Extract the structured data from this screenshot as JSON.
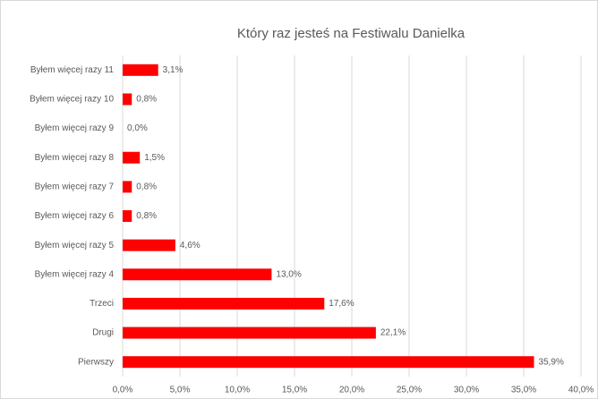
{
  "chart_data": {
    "type": "bar",
    "orientation": "horizontal",
    "title": "Który raz jesteś na Festiwalu Danielka",
    "categories": [
      "Pierwszy",
      "Drugi",
      "Trzeci",
      "Byłem więcej razy 4",
      "Byłem więcej razy 5",
      "Byłem więcej razy 6",
      "Byłem więcej razy 7",
      "Byłem więcej razy 8",
      "Byłem więcej razy 9",
      "Byłem więcej razy 10",
      "Byłem więcej razy 11"
    ],
    "values": [
      35.9,
      22.1,
      17.6,
      13.0,
      4.6,
      0.8,
      0.8,
      1.5,
      0.0,
      0.8,
      3.1
    ],
    "value_labels": [
      "35,9%",
      "22,1%",
      "17,6%",
      "13,0%",
      "4,6%",
      "0,8%",
      "0,8%",
      "1,5%",
      "0,0%",
      "0,8%",
      "3,1%"
    ],
    "color": "#ff0000",
    "xlim": [
      0,
      40
    ],
    "xticks": [
      {
        "value": 0,
        "label": "0,0%"
      },
      {
        "value": 5,
        "label": "5,0%"
      },
      {
        "value": 10,
        "label": "10,0%"
      },
      {
        "value": 15,
        "label": "15,0%"
      },
      {
        "value": 20,
        "label": "20,0%"
      },
      {
        "value": 25,
        "label": "25,0%"
      },
      {
        "value": 30,
        "label": "30,0%"
      },
      {
        "value": 35,
        "label": "35,0%"
      },
      {
        "value": 40,
        "label": "40,0%"
      }
    ],
    "grid": true
  }
}
